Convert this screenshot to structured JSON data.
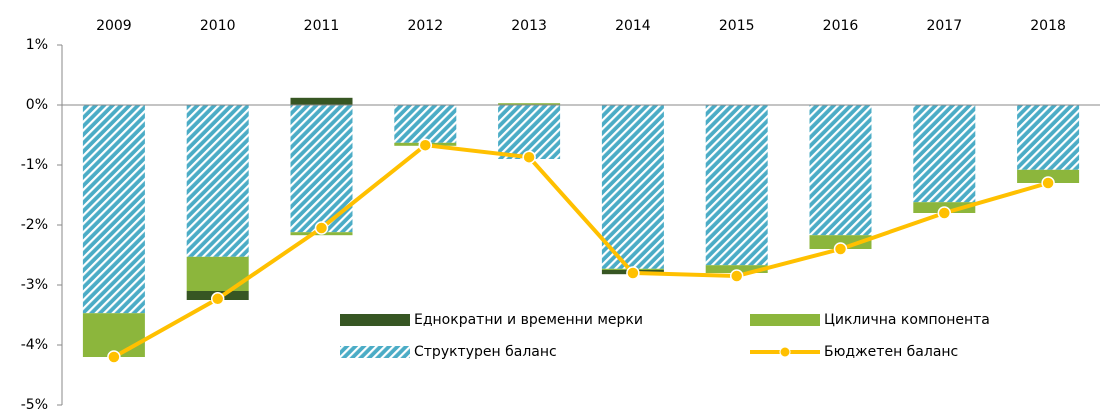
{
  "chart_data": {
    "type": "bar",
    "categories": [
      "2009",
      "2010",
      "2011",
      "2012",
      "2013",
      "2014",
      "2015",
      "2016",
      "2017",
      "2018"
    ],
    "series": [
      {
        "name": "Еднократни и временни мерки",
        "type": "bar",
        "color": "#375623",
        "values": [
          0,
          -0.15,
          0.12,
          0,
          0,
          -0.07,
          0,
          0,
          0,
          0
        ]
      },
      {
        "name": "Циклична компонента",
        "type": "bar",
        "color": "#8cb63c",
        "values": [
          -0.73,
          -0.57,
          -0.05,
          -0.05,
          0.03,
          -0.02,
          -0.13,
          -0.23,
          -0.18,
          -0.22
        ]
      },
      {
        "name": "Структурен баланс",
        "type": "bar",
        "color": "#4bacc6",
        "hatch": true,
        "values": [
          -3.47,
          -2.53,
          -2.12,
          -0.63,
          -0.9,
          -2.73,
          -2.67,
          -2.17,
          -1.62,
          -1.08
        ]
      },
      {
        "name": "Бюджетен баланс",
        "type": "line",
        "color": "#ffc000",
        "values": [
          -4.2,
          -3.23,
          -2.05,
          -0.67,
          -0.87,
          -2.8,
          -2.85,
          -2.4,
          -1.8,
          -1.3
        ]
      }
    ],
    "ylim": [
      -5,
      1
    ],
    "yticks": [
      {
        "value": 1,
        "label": "1%"
      },
      {
        "value": 0,
        "label": "0%"
      },
      {
        "value": -1,
        "label": "-1%"
      },
      {
        "value": -2,
        "label": "-2%"
      },
      {
        "value": -3,
        "label": "-3%"
      },
      {
        "value": -4,
        "label": "-4%"
      },
      {
        "value": -5,
        "label": "-5%"
      }
    ],
    "grid": false
  }
}
